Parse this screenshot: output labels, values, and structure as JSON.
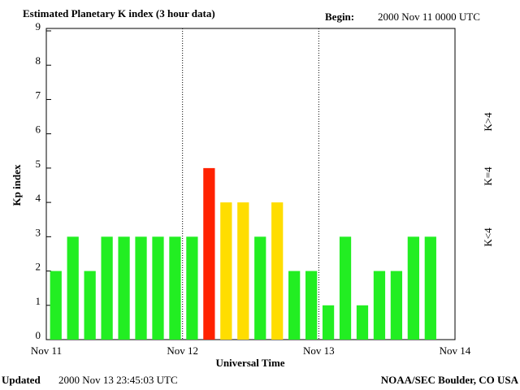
{
  "chart_data": {
    "type": "bar",
    "title": "Estimated Planetary K index (3 hour data)",
    "begin_label": "Begin:",
    "begin": "2000 Nov 11 0000 UTC",
    "x_label": "Universal Time",
    "y_label": "Kp index",
    "updated_label": "Updated",
    "updated": "2000 Nov 13 23:45:03 UTC",
    "credit": "NOAA/SEC Boulder, CO USA",
    "x": [
      0,
      3,
      6,
      9,
      12,
      15,
      18,
      21,
      24,
      27,
      30,
      33,
      36,
      39,
      42,
      45,
      48,
      51,
      54,
      57,
      60,
      63,
      66
    ],
    "values": [
      2,
      3,
      2,
      3,
      3,
      3,
      3,
      3,
      3,
      5,
      4,
      4,
      3,
      4,
      2,
      2,
      1,
      3,
      1,
      2,
      2,
      3,
      3
    ],
    "colors": [
      "#22ee22",
      "#22ee22",
      "#22ee22",
      "#22ee22",
      "#22ee22",
      "#22ee22",
      "#22ee22",
      "#22ee22",
      "#22ee22",
      "#ff2200",
      "#ffdd00",
      "#ffdd00",
      "#22ee22",
      "#ffdd00",
      "#22ee22",
      "#22ee22",
      "#22ee22",
      "#22ee22",
      "#22ee22",
      "#22ee22",
      "#22ee22",
      "#22ee22",
      "#22ee22"
    ],
    "xlim": [
      0,
      72
    ],
    "xticks": [
      {
        "value": 0,
        "label": "Nov 11"
      },
      {
        "value": 24,
        "label": "Nov 12"
      },
      {
        "value": 48,
        "label": "Nov 13"
      },
      {
        "value": 72,
        "label": "Nov 14"
      }
    ],
    "ylim": [
      0,
      9
    ],
    "yticks": [
      0,
      1,
      2,
      3,
      4,
      5,
      6,
      7,
      8,
      9
    ],
    "legend": [
      {
        "name": "K>4",
        "color": "#ff2200"
      },
      {
        "name": "K=4",
        "color": "#ffdd00"
      },
      {
        "name": "K<4",
        "color": "#22ee22"
      }
    ],
    "grid": true
  }
}
